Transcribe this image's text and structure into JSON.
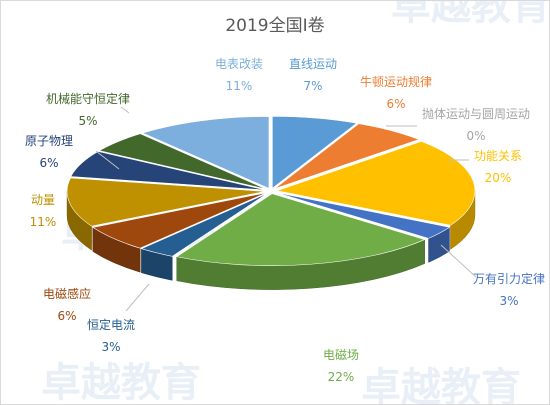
{
  "chart_data": {
    "type": "pie",
    "title": "2019全国Ⅰ卷",
    "style": "3d-exploded",
    "slices": [
      {
        "label": "直线运动",
        "value": 7,
        "percent_label": "7%",
        "color": "#5b9bd5"
      },
      {
        "label": "牛顿运动规律",
        "value": 6,
        "percent_label": "6%",
        "color": "#ed7d31"
      },
      {
        "label": "抛体运动与圆周运动",
        "value": 0,
        "percent_label": "0%",
        "color": "#a5a5a5"
      },
      {
        "label": "功能关系",
        "value": 20,
        "percent_label": "20%",
        "color": "#ffc000"
      },
      {
        "label": "万有引力定律",
        "value": 3,
        "percent_label": "3%",
        "color": "#4472c4"
      },
      {
        "label": "电磁场",
        "value": 22,
        "percent_label": "22%",
        "color": "#70ad47"
      },
      {
        "label": "恒定电流",
        "value": 3,
        "percent_label": "3%",
        "color": "#255e91"
      },
      {
        "label": "电磁感应",
        "value": 6,
        "percent_label": "6%",
        "color": "#9e480e"
      },
      {
        "label": "动量",
        "value": 11,
        "percent_label": "11%",
        "color": "#bf9000"
      },
      {
        "label": "原子物理",
        "value": 6,
        "percent_label": "6%",
        "color": "#264478"
      },
      {
        "label": "机械能守恒定律",
        "value": 5,
        "percent_label": "5%",
        "color": "#43682b"
      },
      {
        "label": "电表改装",
        "value": 11,
        "percent_label": "11%",
        "color": "#7cafdd"
      }
    ]
  },
  "watermark": "卓越教育"
}
